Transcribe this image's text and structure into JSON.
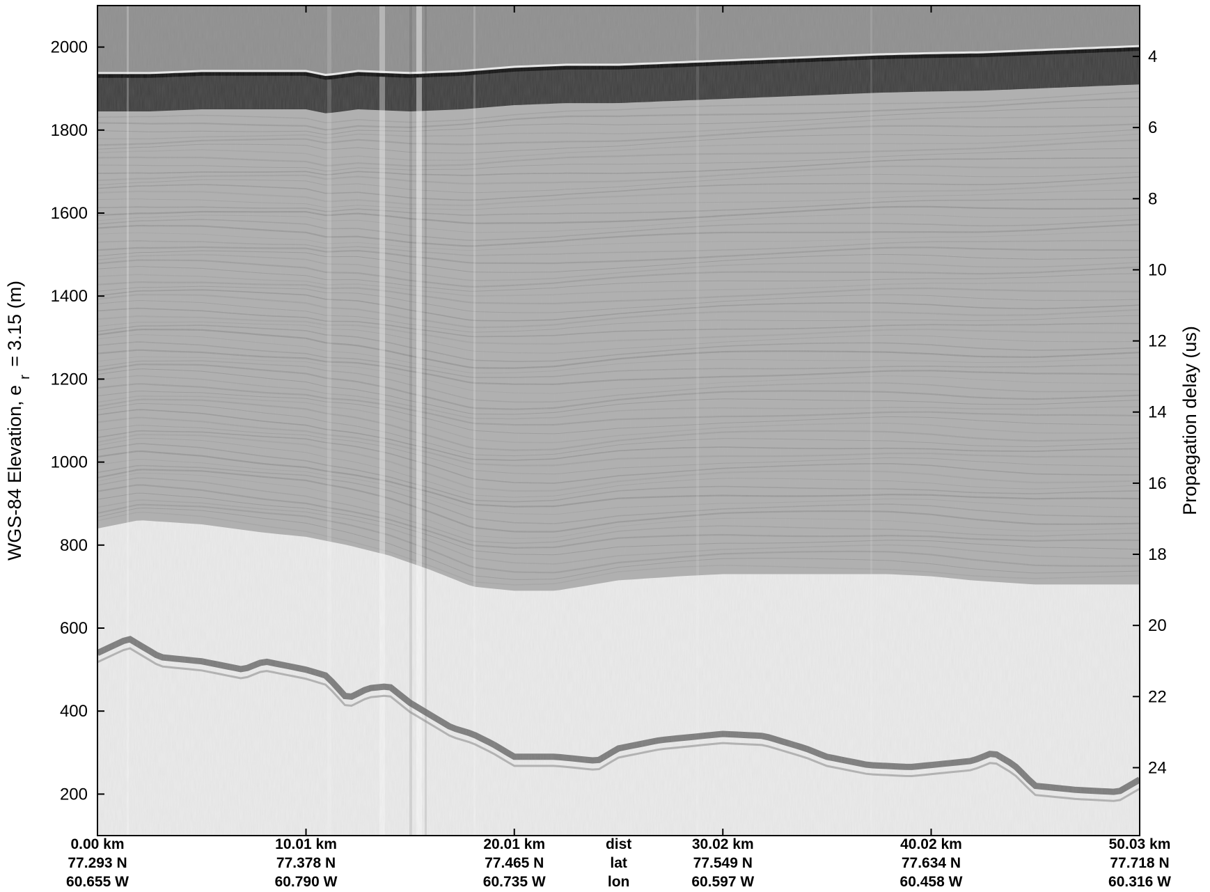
{
  "chart_data": {
    "type": "heatmap",
    "colormap": "grayscale",
    "left_axis": {
      "title_main": "WGS-84 Elevation, e",
      "title_sub": "r",
      "title_tail": " = 3.15 (m)",
      "ticks": [
        200,
        400,
        600,
        800,
        1000,
        1200,
        1400,
        1600,
        1800,
        2000
      ],
      "range": [
        100,
        2100
      ]
    },
    "right_axis": {
      "title": "Propagation delay (us)",
      "ticks": [
        4,
        6,
        8,
        10,
        12,
        14,
        16,
        18,
        20,
        22,
        24
      ],
      "range": [
        2.57,
        25.91
      ]
    },
    "x_axis": {
      "range_km": [
        0,
        50.03
      ],
      "tick_positions_km": [
        0,
        10.01,
        20.01,
        30.02,
        40.02,
        50.03
      ],
      "rows": [
        {
          "name": "dist",
          "labels": [
            "0.00 km",
            "10.01 km",
            "20.01 km",
            "30.02 km",
            "40.02 km",
            "50.03 km"
          ]
        },
        {
          "name": "lat",
          "labels": [
            "77.293 N",
            "77.378 N",
            "77.465 N",
            "77.549 N",
            "77.634 N",
            "77.718 N"
          ]
        },
        {
          "name": "lon",
          "labels": [
            "60.655 W",
            "60.790 W",
            "60.735 W",
            "60.597 W",
            "60.458 W",
            "60.316 W"
          ]
        }
      ],
      "row_names_at_km": 25.02
    },
    "series": [
      {
        "feature": "surface",
        "x_km": [
          0,
          2.5,
          5,
          7.5,
          10,
          11,
          12.5,
          15,
          17.5,
          20,
          22.5,
          25,
          27.5,
          30,
          32.5,
          35,
          37.5,
          40,
          42.5,
          45,
          47.5,
          50.03
        ],
        "elevation_m": [
          1930,
          1930,
          1935,
          1935,
          1935,
          1925,
          1935,
          1930,
          1935,
          1945,
          1950,
          1950,
          1955,
          1960,
          1965,
          1970,
          1975,
          1978,
          1980,
          1985,
          1990,
          1995
        ]
      },
      {
        "feature": "bed",
        "x_km": [
          0,
          1.5,
          3,
          5,
          7,
          8,
          10,
          11,
          12,
          13,
          14,
          15,
          16,
          17,
          18,
          19,
          20,
          22,
          24,
          25,
          27,
          30,
          32,
          34,
          35,
          37,
          39,
          40,
          42,
          43,
          44,
          45,
          47,
          49,
          50.03
        ],
        "elevation_m": [
          540,
          575,
          530,
          520,
          500,
          520,
          500,
          485,
          430,
          455,
          460,
          420,
          390,
          360,
          345,
          320,
          290,
          290,
          280,
          310,
          330,
          345,
          340,
          310,
          290,
          270,
          265,
          270,
          280,
          300,
          270,
          220,
          210,
          205,
          235
        ]
      },
      {
        "feature": "layered_zone_bottom",
        "x_km": [
          0,
          2,
          5,
          8,
          10,
          12,
          14,
          16,
          17,
          18,
          20,
          22,
          25,
          28,
          30,
          32,
          35,
          38,
          40,
          42,
          45,
          48,
          50.03
        ],
        "elevation_m": [
          840,
          860,
          850,
          830,
          820,
          800,
          775,
          740,
          720,
          700,
          690,
          690,
          715,
          725,
          730,
          730,
          730,
          730,
          725,
          715,
          705,
          705,
          705
        ]
      }
    ],
    "grid": false,
    "legend": "none"
  }
}
